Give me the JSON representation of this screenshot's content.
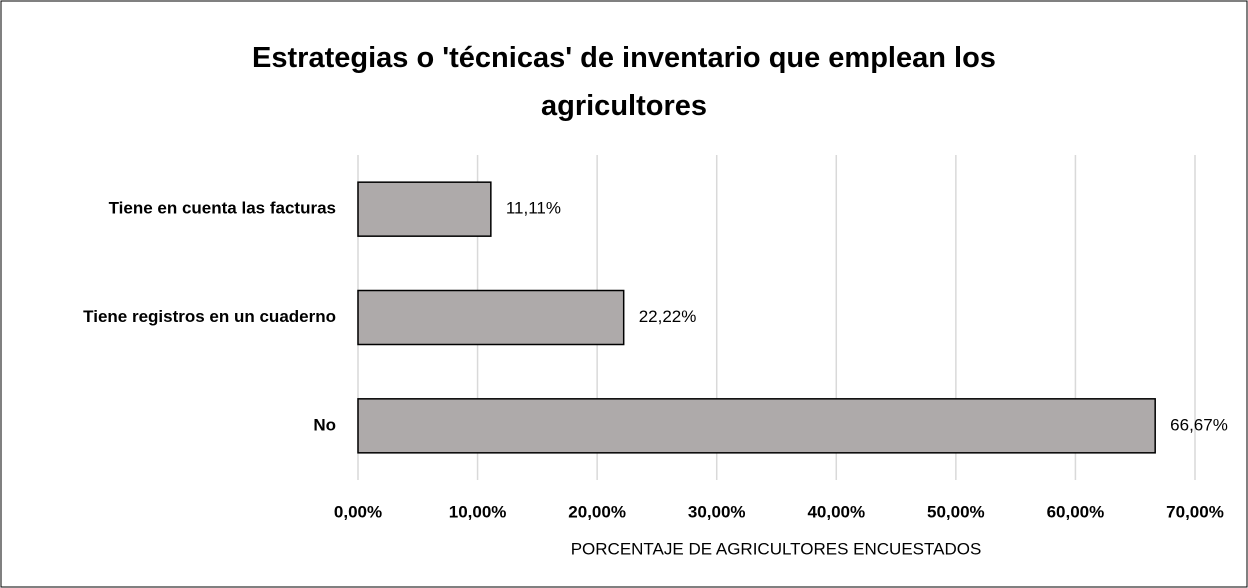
{
  "chart_data": {
    "type": "bar",
    "orientation": "horizontal",
    "title": "Estrategias o 'técnicas' de inventario que emplean los agricultores",
    "xlabel": "PORCENTAJE DE AGRICULTORES ENCUESTADOS",
    "categories": [
      "Tiene en cuenta las facturas",
      "Tiene registros en un cuaderno",
      "No"
    ],
    "values": [
      11.11,
      22.22,
      66.67
    ],
    "value_labels": [
      "11,11%",
      "22,22%",
      "66,67%"
    ],
    "color": "#aeaaaa",
    "xlim": [
      0,
      70
    ],
    "xticks": [
      {
        "value": 0,
        "label": "0,00%"
      },
      {
        "value": 10,
        "label": "10,00%"
      },
      {
        "value": 20,
        "label": "20,00%"
      },
      {
        "value": 30,
        "label": "30,00%"
      },
      {
        "value": 40,
        "label": "40,00%"
      },
      {
        "value": 50,
        "label": "50,00%"
      },
      {
        "value": 60,
        "label": "60,00%"
      },
      {
        "value": 70,
        "label": "70,00%"
      }
    ],
    "grid": true
  }
}
